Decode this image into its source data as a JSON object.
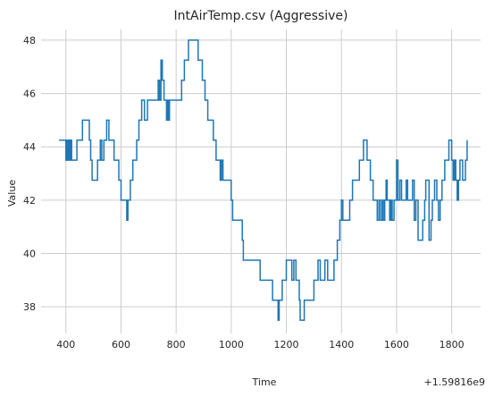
{
  "chart_data": {
    "type": "line",
    "title": "IntAirTemp.csv (Aggressive)",
    "xlabel": "Time",
    "ylabel": "Value",
    "x_offset_label": "+1.59816e9",
    "xlim": [
      310,
      1905
    ],
    "ylim": [
      37.0,
      48.4
    ],
    "xticks": [
      400,
      600,
      800,
      1000,
      1200,
      1400,
      1600,
      1800
    ],
    "xtick_labels": [
      "400",
      "600",
      "800",
      "1000",
      "1200",
      "1400",
      "1600",
      "1800"
    ],
    "yticks": [
      38,
      40,
      42,
      44,
      46,
      48
    ],
    "ytick_labels": [
      "38",
      "40",
      "42",
      "44",
      "46",
      "48"
    ],
    "grid": true,
    "step": "post",
    "series": [
      {
        "color": "#1f77b4",
        "points": [
          [
            375,
            44.25
          ],
          [
            397,
            44.25
          ],
          [
            400,
            43.5
          ],
          [
            403,
            44.25
          ],
          [
            406,
            43.5
          ],
          [
            410,
            44.25
          ],
          [
            414,
            43.5
          ],
          [
            418,
            44.25
          ],
          [
            421,
            43.5
          ],
          [
            440,
            44.25
          ],
          [
            460,
            45.0
          ],
          [
            485,
            44.25
          ],
          [
            490,
            43.5
          ],
          [
            495,
            42.75
          ],
          [
            515,
            43.5
          ],
          [
            525,
            44.25
          ],
          [
            530,
            43.5
          ],
          [
            538,
            44.25
          ],
          [
            548,
            45.0
          ],
          [
            556,
            44.25
          ],
          [
            575,
            43.5
          ],
          [
            592,
            42.75
          ],
          [
            600,
            42.0
          ],
          [
            621,
            41.25
          ],
          [
            625,
            42.0
          ],
          [
            634,
            42.75
          ],
          [
            643,
            43.5
          ],
          [
            657,
            44.25
          ],
          [
            665,
            45.0
          ],
          [
            675,
            45.75
          ],
          [
            685,
            45.0
          ],
          [
            696,
            45.75
          ],
          [
            735,
            46.5
          ],
          [
            740,
            45.75
          ],
          [
            745,
            47.25
          ],
          [
            750,
            46.5
          ],
          [
            756,
            45.75
          ],
          [
            765,
            45.0
          ],
          [
            770,
            45.75
          ],
          [
            774,
            45.0
          ],
          [
            776,
            45.75
          ],
          [
            820,
            46.5
          ],
          [
            830,
            47.25
          ],
          [
            845,
            48.0
          ],
          [
            880,
            47.25
          ],
          [
            895,
            46.5
          ],
          [
            905,
            45.75
          ],
          [
            915,
            45.0
          ],
          [
            935,
            44.25
          ],
          [
            945,
            43.5
          ],
          [
            960,
            42.75
          ],
          [
            965,
            43.5
          ],
          [
            970,
            42.75
          ],
          [
            1000,
            42.0
          ],
          [
            1005,
            41.25
          ],
          [
            1040,
            40.5
          ],
          [
            1044,
            39.75
          ],
          [
            1075,
            39.75
          ],
          [
            1105,
            39.0
          ],
          [
            1150,
            38.25
          ],
          [
            1170,
            37.5
          ],
          [
            1174,
            38.25
          ],
          [
            1185,
            39.0
          ],
          [
            1200,
            39.75
          ],
          [
            1220,
            39.0
          ],
          [
            1227,
            39.75
          ],
          [
            1235,
            39.0
          ],
          [
            1247,
            38.25
          ],
          [
            1250,
            37.5
          ],
          [
            1265,
            38.25
          ],
          [
            1300,
            39.0
          ],
          [
            1315,
            39.75
          ],
          [
            1323,
            39.0
          ],
          [
            1340,
            39.75
          ],
          [
            1350,
            39.0
          ],
          [
            1373,
            39.75
          ],
          [
            1385,
            40.5
          ],
          [
            1394,
            41.25
          ],
          [
            1400,
            42.0
          ],
          [
            1405,
            41.25
          ],
          [
            1430,
            42.0
          ],
          [
            1440,
            42.75
          ],
          [
            1465,
            43.5
          ],
          [
            1480,
            44.25
          ],
          [
            1493,
            43.5
          ],
          [
            1505,
            42.75
          ],
          [
            1515,
            42.0
          ],
          [
            1530,
            41.25
          ],
          [
            1536,
            42.0
          ],
          [
            1542,
            41.25
          ],
          [
            1548,
            42.0
          ],
          [
            1552,
            41.25
          ],
          [
            1557,
            42.0
          ],
          [
            1562,
            42.75
          ],
          [
            1566,
            42.0
          ],
          [
            1575,
            41.25
          ],
          [
            1580,
            42.0
          ],
          [
            1584,
            41.25
          ],
          [
            1591,
            42.0
          ],
          [
            1600,
            43.5
          ],
          [
            1605,
            42.0
          ],
          [
            1612,
            42.75
          ],
          [
            1618,
            42.0
          ],
          [
            1635,
            42.75
          ],
          [
            1640,
            42.0
          ],
          [
            1658,
            42.75
          ],
          [
            1664,
            41.25
          ],
          [
            1670,
            42.0
          ],
          [
            1678,
            40.5
          ],
          [
            1695,
            41.25
          ],
          [
            1702,
            42.0
          ],
          [
            1706,
            42.75
          ],
          [
            1718,
            40.5
          ],
          [
            1725,
            41.25
          ],
          [
            1730,
            42.0
          ],
          [
            1738,
            42.75
          ],
          [
            1746,
            42.0
          ],
          [
            1752,
            41.25
          ],
          [
            1758,
            42.0
          ],
          [
            1765,
            42.75
          ],
          [
            1775,
            43.5
          ],
          [
            1790,
            44.25
          ],
          [
            1800,
            43.5
          ],
          [
            1805,
            42.75
          ],
          [
            1810,
            43.5
          ],
          [
            1815,
            42.75
          ],
          [
            1820,
            42.0
          ],
          [
            1825,
            42.75
          ],
          [
            1830,
            43.5
          ],
          [
            1840,
            42.75
          ],
          [
            1850,
            43.5
          ],
          [
            1856,
            44.25
          ]
        ]
      }
    ]
  }
}
